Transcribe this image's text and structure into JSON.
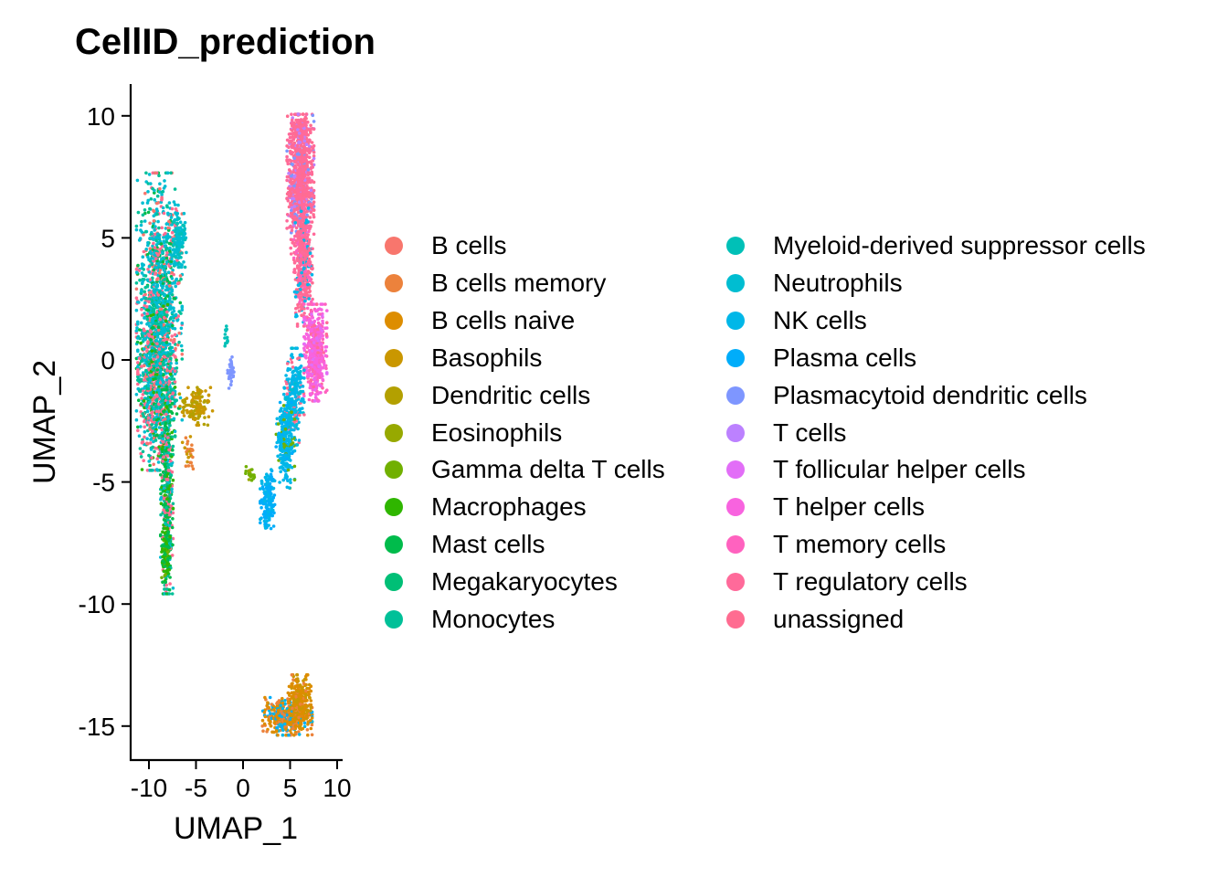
{
  "chart_data": {
    "type": "scatter",
    "title": "CellID_prediction",
    "xlabel": "UMAP_1",
    "ylabel": "UMAP_2",
    "xlim": [
      -12.5,
      10.5
    ],
    "ylim": [
      -16.5,
      11.3
    ],
    "x_ticks": [
      -10,
      -5,
      0,
      5,
      10
    ],
    "x_tick_labels": [
      "-10",
      "-5",
      "0",
      "5",
      "10"
    ],
    "y_ticks": [
      10,
      5,
      0,
      -5,
      -10,
      -15
    ],
    "y_tick_labels": [
      "10",
      "5",
      "0",
      "-5",
      "-10",
      "-15"
    ],
    "grid": false,
    "legend_position": "right",
    "legend_columns": 2,
    "legend": [
      {
        "label": "B cells",
        "color": "#F8766D"
      },
      {
        "label": "B cells memory",
        "color": "#EC823C"
      },
      {
        "label": "B cells naive",
        "color": "#DD8D00"
      },
      {
        "label": "Basophils",
        "color": "#CA9700"
      },
      {
        "label": "Dendritic cells",
        "color": "#B3A000"
      },
      {
        "label": "Eosinophils",
        "color": "#97A900"
      },
      {
        "label": "Gamma delta T cells",
        "color": "#71B000"
      },
      {
        "label": "Macrophages",
        "color": "#2FB600"
      },
      {
        "label": "Mast cells",
        "color": "#00BB4B"
      },
      {
        "label": "Megakaryocytes",
        "color": "#00BF76"
      },
      {
        "label": "Monocytes",
        "color": "#00C098"
      },
      {
        "label": "Myeloid-derived suppressor cells",
        "color": "#00C0B7"
      },
      {
        "label": "Neutrophils",
        "color": "#00BDD1"
      },
      {
        "label": "NK cells",
        "color": "#00B7E8"
      },
      {
        "label": "Plasma cells",
        "color": "#00ADFA"
      },
      {
        "label": "Plasmacytoid dendritic cells",
        "color": "#7E96FF"
      },
      {
        "label": "T cells",
        "color": "#BC81FF"
      },
      {
        "label": "T follicular helper cells",
        "color": "#E26EF7"
      },
      {
        "label": "T helper cells",
        "color": "#F863DF"
      },
      {
        "label": "T memory cells",
        "color": "#FF62BF"
      },
      {
        "label": "T regulatory cells",
        "color": "#FF6A9A"
      },
      {
        "label": "unassigned",
        "color": "#FF6C91"
      }
    ],
    "clusters": [
      {
        "name": "left-upper",
        "center": [
          -8.9,
          2.6
        ],
        "spread": [
          1.1,
          2.3
        ],
        "n": 1100,
        "mix": [
          [
            "Neutrophils",
            6
          ],
          [
            "Monocytes",
            2
          ],
          [
            "unassigned",
            2
          ],
          [
            "B cells",
            1
          ],
          [
            "Mast cells",
            1
          ]
        ]
      },
      {
        "name": "left-top-tip",
        "center": [
          -6.8,
          4.9
        ],
        "spread": [
          0.35,
          0.5
        ],
        "n": 120,
        "mix": [
          [
            "Neutrophils",
            5
          ],
          [
            "Myeloid-derived suppressor cells",
            2
          ]
        ]
      },
      {
        "name": "left-middle",
        "center": [
          -9.2,
          -1.0
        ],
        "spread": [
          0.9,
          1.6
        ],
        "n": 900,
        "mix": [
          [
            "Neutrophils",
            4
          ],
          [
            "Monocytes",
            3
          ],
          [
            "unassigned",
            3
          ],
          [
            "Mast cells",
            1
          ],
          [
            "Macrophages",
            1
          ],
          [
            "B cells",
            1
          ]
        ]
      },
      {
        "name": "left-stem",
        "center": [
          -8.1,
          -5.4
        ],
        "spread": [
          0.3,
          1.9
        ],
        "n": 500,
        "mix": [
          [
            "Mast cells",
            3
          ],
          [
            "Monocytes",
            2
          ],
          [
            "unassigned",
            2
          ],
          [
            "Macrophages",
            1
          ],
          [
            "Neutrophils",
            1
          ]
        ]
      },
      {
        "name": "left-stem-tip",
        "center": [
          -8.2,
          -8.0
        ],
        "spread": [
          0.2,
          0.5
        ],
        "n": 90,
        "mix": [
          [
            "Macrophages",
            2
          ],
          [
            "Gamma delta T cells",
            1
          ],
          [
            "Mast cells",
            1
          ]
        ]
      },
      {
        "name": "basophil-blob",
        "center": [
          -5.0,
          -1.9
        ],
        "spread": [
          0.8,
          0.35
        ],
        "n": 130,
        "mix": [
          [
            "Basophils",
            3
          ],
          [
            "Dendritic cells",
            2
          ]
        ]
      },
      {
        "name": "basophil-small",
        "center": [
          -5.8,
          -3.8
        ],
        "spread": [
          0.3,
          0.3
        ],
        "n": 30,
        "mix": [
          [
            "B cells memory",
            1
          ],
          [
            "Basophils",
            1
          ]
        ]
      },
      {
        "name": "pdc-cluster",
        "center": [
          -1.3,
          -0.5
        ],
        "spread": [
          0.15,
          0.3
        ],
        "n": 30,
        "mix": [
          [
            "Plasmacytoid dendritic cells",
            1
          ]
        ]
      },
      {
        "name": "pdc-spot",
        "center": [
          -1.8,
          1.0
        ],
        "spread": [
          0.1,
          0.25
        ],
        "n": 12,
        "mix": [
          [
            "Myeloid-derived suppressor cells",
            1
          ]
        ]
      },
      {
        "name": "right-top",
        "center": [
          6.1,
          7.2
        ],
        "spread": [
          0.65,
          1.3
        ],
        "n": 900,
        "mix": [
          [
            "T regulatory cells",
            5
          ],
          [
            "unassigned",
            3
          ],
          [
            "T cells",
            1
          ],
          [
            "Plasmacytoid dendritic cells",
            1
          ]
        ]
      },
      {
        "name": "right-top-cap",
        "center": [
          6.2,
          9.3
        ],
        "spread": [
          0.45,
          0.35
        ],
        "n": 160,
        "mix": [
          [
            "T regulatory cells",
            3
          ],
          [
            "unassigned",
            2
          ],
          [
            "T cells",
            1
          ]
        ]
      },
      {
        "name": "right-neck",
        "center": [
          6.4,
          3.8
        ],
        "spread": [
          0.45,
          1.1
        ],
        "n": 400,
        "mix": [
          [
            "T regulatory cells",
            3
          ],
          [
            "unassigned",
            2
          ],
          [
            "NK cells",
            1
          ],
          [
            "T memory cells",
            1
          ]
        ]
      },
      {
        "name": "right-bulge",
        "center": [
          7.7,
          0.3
        ],
        "spread": [
          0.55,
          0.9
        ],
        "n": 500,
        "mix": [
          [
            "T helper cells",
            4
          ],
          [
            "T memory cells",
            2
          ],
          [
            "T regulatory cells",
            1
          ],
          [
            "T follicular helper cells",
            1
          ]
        ]
      },
      {
        "name": "right-arm",
        "center": [
          5.4,
          -1.5
        ],
        "spread": [
          0.5,
          0.9
        ],
        "n": 260,
        "mix": [
          [
            "NK cells",
            4
          ],
          [
            "unassigned",
            1
          ],
          [
            "Neutrophils",
            1
          ]
        ]
      },
      {
        "name": "right-arm-lower",
        "center": [
          4.5,
          -3.5
        ],
        "spread": [
          0.45,
          0.8
        ],
        "n": 240,
        "mix": [
          [
            "NK cells",
            4
          ],
          [
            "Plasma cells",
            1
          ],
          [
            "Gamma delta T cells",
            1
          ]
        ]
      },
      {
        "name": "right-arm-tip",
        "center": [
          2.6,
          -5.7
        ],
        "spread": [
          0.35,
          0.55
        ],
        "n": 180,
        "mix": [
          [
            "Plasma cells",
            3
          ],
          [
            "NK cells",
            2
          ]
        ]
      },
      {
        "name": "gd-spur",
        "center": [
          0.9,
          -4.7
        ],
        "spread": [
          0.35,
          0.15
        ],
        "n": 20,
        "mix": [
          [
            "Gamma delta T cells",
            2
          ],
          [
            "Eosinophils",
            1
          ]
        ]
      },
      {
        "name": "bcell-blob",
        "center": [
          4.7,
          -14.6
        ],
        "spread": [
          1.2,
          0.35
        ],
        "n": 420,
        "mix": [
          [
            "B cells naive",
            3
          ],
          [
            "B cells memory",
            2
          ],
          [
            "NK cells",
            1
          ],
          [
            "Plasma cells",
            1
          ]
        ]
      },
      {
        "name": "bcell-blob-right",
        "center": [
          6.0,
          -14.0
        ],
        "spread": [
          0.55,
          0.5
        ],
        "n": 260,
        "mix": [
          [
            "B cells naive",
            3
          ],
          [
            "Basophils",
            2
          ],
          [
            "B cells memory",
            1
          ]
        ]
      }
    ]
  }
}
